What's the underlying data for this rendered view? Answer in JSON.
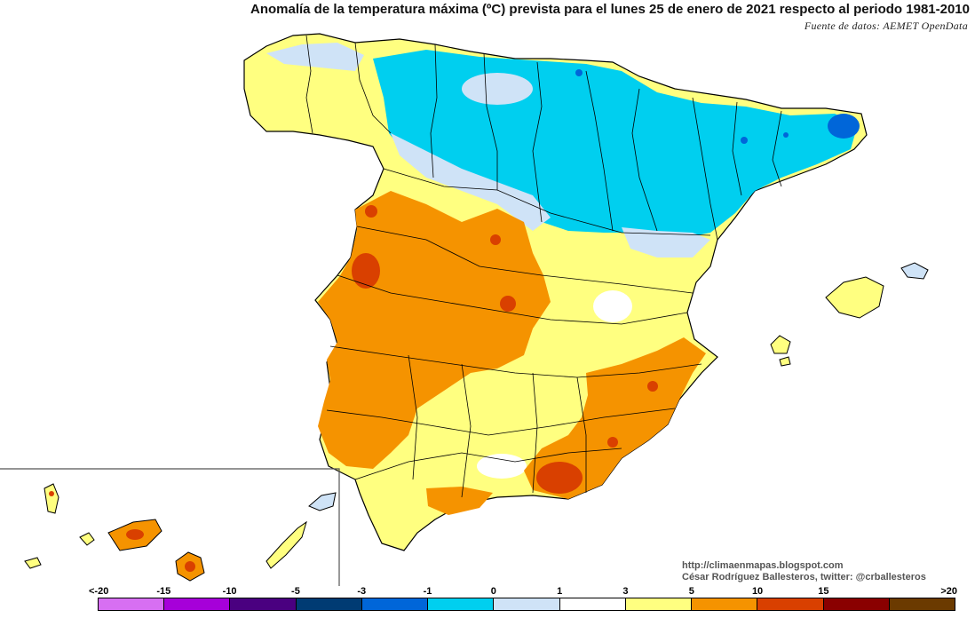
{
  "title": "Anomalía de la temperatura máxima (ºC) prevista para el lunes 25 de enero de 2021 respecto al periodo 1981-2010",
  "source": "Fuente de datos: AEMET OpenData",
  "credits": {
    "blog": "http://climaenmapas.blogspot.com",
    "author": "César Rodríguez Ballesteros, twitter: @crballesteros"
  },
  "legend": {
    "labels": [
      "<-20",
      "-15",
      "-10",
      "-5",
      "-3",
      "-1",
      "0",
      "1",
      "3",
      "5",
      "10",
      "15",
      ">20"
    ],
    "colors": [
      "#d76ff2",
      "#a600d9",
      "#4a0080",
      "#003b73",
      "#0066d9",
      "#00cfef",
      "#cfe3f7",
      "#ffffff",
      "#ffff80",
      "#f59300",
      "#d94000",
      "#8a0000",
      "#6b3a00"
    ]
  },
  "colors": {
    "strong_cold": "#0066d9",
    "cold": "#00cfef",
    "slight_cold": "#cfe3f7",
    "neutral": "#ffffff",
    "slight_warm": "#ffff80",
    "warm": "#f59300",
    "hot": "#d94000",
    "border": "#000000"
  }
}
